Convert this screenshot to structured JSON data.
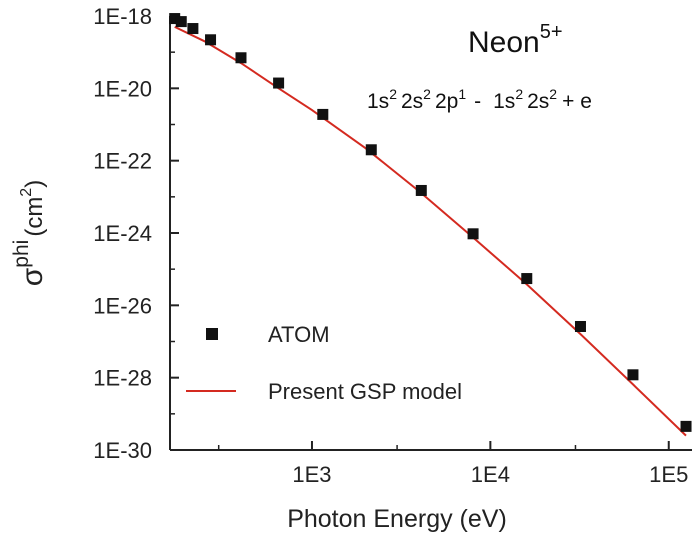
{
  "chart_data": {
    "type": "scatter",
    "x_scale": "log",
    "y_scale": "log",
    "xlim": [
      160,
      135000
    ],
    "ylim": [
      1e-30,
      1e-18
    ],
    "x_ticks": [
      {
        "value": 1000,
        "label": "1E3"
      },
      {
        "value": 10000,
        "label": "1E4"
      },
      {
        "value": 100000,
        "label": "1E5"
      }
    ],
    "y_ticks": [
      {
        "value": 1e-18,
        "label": "1E-18"
      },
      {
        "value": 1e-20,
        "label": "1E-20"
      },
      {
        "value": 1e-22,
        "label": "1E-22"
      },
      {
        "value": 1e-24,
        "label": "1E-24"
      },
      {
        "value": 1e-26,
        "label": "1E-26"
      },
      {
        "value": 1e-28,
        "label": "1E-28"
      },
      {
        "value": 1e-30,
        "label": "1E-30"
      }
    ],
    "xlabel": "Photon Energy (eV)",
    "ylabel": {
      "base": "σ",
      "sup": "phi",
      "unit": "(cm",
      "unit_sup": "2",
      "unit_close": ")"
    },
    "annotation_title": {
      "base": "Neon",
      "sup": "5+"
    },
    "annotation_transition": {
      "p1": "1s",
      "p1s": "2",
      "p2": "2s",
      "p2s": "2",
      "p3": "2p",
      "p3s": "1",
      "sep": "-",
      "p4": "1s",
      "p4s": "2",
      "p5": "2s",
      "p5s": "2",
      "p6": "+ e"
    },
    "grid": false,
    "legend_position": "bottom-left",
    "series": [
      {
        "name": "ATOM",
        "type": "scatter",
        "marker": "square",
        "color": "#111111",
        "points": [
          {
            "x": 170,
            "y": 8.5e-19
          },
          {
            "x": 185,
            "y": 7e-19
          },
          {
            "x": 215,
            "y": 4.5e-19
          },
          {
            "x": 270,
            "y": 2.2e-19
          },
          {
            "x": 400,
            "y": 7e-20
          },
          {
            "x": 650,
            "y": 1.4e-20
          },
          {
            "x": 1150,
            "y": 1.9e-21
          },
          {
            "x": 2150,
            "y": 2e-22
          },
          {
            "x": 4100,
            "y": 1.5e-23
          },
          {
            "x": 8000,
            "y": 9.5e-25
          },
          {
            "x": 16000,
            "y": 5.5e-26
          },
          {
            "x": 32000,
            "y": 2.6e-27
          },
          {
            "x": 63000,
            "y": 1.2e-28
          },
          {
            "x": 125000,
            "y": 4.5e-30
          }
        ]
      },
      {
        "name": "Present GSP model",
        "type": "line",
        "color": "#d42a20",
        "points": [
          {
            "x": 170,
            "y": 5e-19
          },
          {
            "x": 250,
            "y": 2e-19
          },
          {
            "x": 400,
            "y": 5e-20
          },
          {
            "x": 650,
            "y": 1e-20
          },
          {
            "x": 1000,
            "y": 2.5e-21
          },
          {
            "x": 2000,
            "y": 2.2e-22
          },
          {
            "x": 4000,
            "y": 1.4e-23
          },
          {
            "x": 8000,
            "y": 7.5e-25
          },
          {
            "x": 16000,
            "y": 3.8e-26
          },
          {
            "x": 32000,
            "y": 1.6e-27
          },
          {
            "x": 63000,
            "y": 6.5e-29
          },
          {
            "x": 125000,
            "y": 2.5e-30
          }
        ]
      }
    ]
  }
}
